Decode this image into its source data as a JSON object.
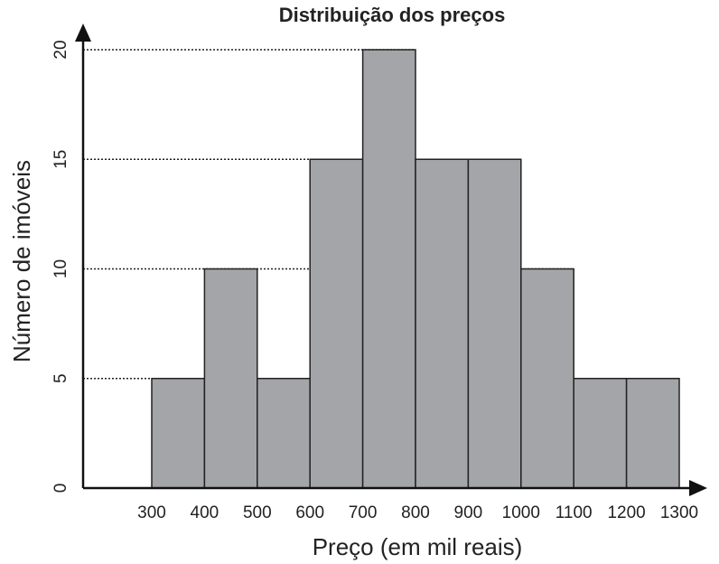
{
  "chart_data": {
    "type": "bar",
    "title": "Distribuição dos preços",
    "xlabel": "Preço (em mil reais)",
    "ylabel": "Número de imóveis",
    "x_ticks": [
      "300",
      "400",
      "500",
      "600",
      "700",
      "800",
      "900",
      "1000",
      "1100",
      "1200",
      "1300"
    ],
    "y_ticks": [
      "0",
      "5",
      "10",
      "15",
      "20"
    ],
    "xlim": [
      300,
      1300
    ],
    "ylim": [
      0,
      20
    ],
    "bins": [
      {
        "from": 300,
        "to": 400,
        "value": 5
      },
      {
        "from": 400,
        "to": 500,
        "value": 10
      },
      {
        "from": 500,
        "to": 600,
        "value": 5
      },
      {
        "from": 600,
        "to": 700,
        "value": 15
      },
      {
        "from": 700,
        "to": 800,
        "value": 20
      },
      {
        "from": 800,
        "to": 900,
        "value": 15
      },
      {
        "from": 900,
        "to": 1000,
        "value": 15
      },
      {
        "from": 1000,
        "to": 1100,
        "value": 10
      },
      {
        "from": 1100,
        "to": 1200,
        "value": 5
      },
      {
        "from": 1200,
        "to": 1300,
        "value": 5
      }
    ],
    "grid": "dotted guide lines at 5, 10, 15, 20",
    "bar_color": "#a3a5a8",
    "legend": "none"
  }
}
